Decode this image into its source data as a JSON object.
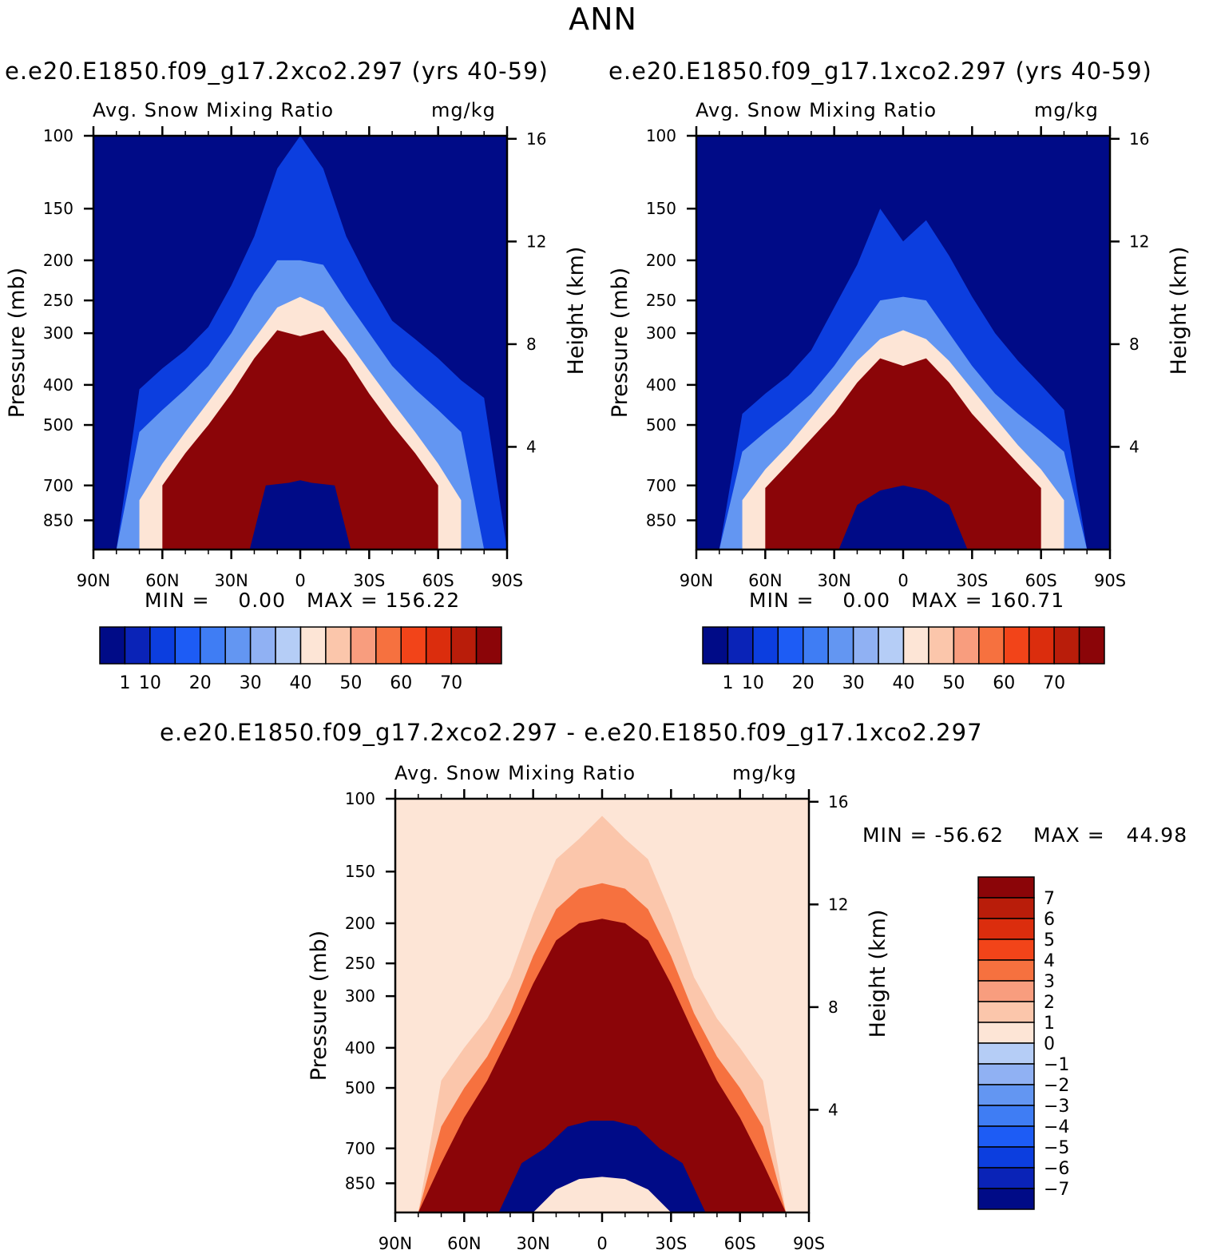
{
  "page_title": "ANN",
  "colors": {
    "abs_levels": [
      "#000b87",
      "#0a23b7",
      "#0c3edf",
      "#1d5cf5",
      "#3f7df4",
      "#6396f2",
      "#90b1f3",
      "#b5cdf6",
      "#dbe9fb",
      "#fde5d6",
      "#fbc6ab",
      "#f89d7e",
      "#f6713f",
      "#f24419",
      "#db2d0d",
      "#b91d0a",
      "#8b0508"
    ],
    "diff_levels": [
      "#000b87",
      "#0a23b7",
      "#0c3edf",
      "#1d5cf5",
      "#3f7df4",
      "#6396f2",
      "#90b1f3",
      "#b5cdf6",
      "#dbe9fb",
      "#fde5d6",
      "#fbc6ab",
      "#f89d7e",
      "#f6713f",
      "#f24419",
      "#db2d0d",
      "#b91d0a",
      "#8b0508"
    ]
  },
  "chart_data": [
    {
      "type": "heatmap",
      "name": "panel-1",
      "title": "e.e20.E1850.f09_g17.2xco2.297 (yrs 40-59)",
      "variable": "Avg. Snow Mixing Ratio",
      "units": "mg/kg",
      "ylabel": "Pressure (mb)",
      "y2label": "Height (km)",
      "x_ticks": [
        "90N",
        "60N",
        "30N",
        "0",
        "30S",
        "60S",
        "90S"
      ],
      "x_values": [
        90,
        60,
        30,
        0,
        -30,
        -60,
        -90
      ],
      "y_ticks": [
        100,
        150,
        200,
        250,
        300,
        400,
        500,
        700,
        850
      ],
      "y_range": [
        100,
        1000
      ],
      "height_ticks": [
        16,
        12,
        8,
        4
      ],
      "min_text": "MIN =    0.00",
      "max_text": "MAX = 156.22",
      "min": 0.0,
      "max": 156.22,
      "colorbar_labels": [
        "1",
        "10",
        "20",
        "30",
        "40",
        "50",
        "60",
        "70"
      ],
      "colorbar_levels": [
        1,
        5,
        10,
        15,
        20,
        25,
        30,
        35,
        40,
        45,
        50,
        55,
        60,
        65,
        70
      ],
      "contours": [
        {
          "value": 1,
          "lat": [
            90,
            80,
            70,
            60,
            50,
            40,
            30,
            20,
            10,
            0,
            -10,
            -20,
            -30,
            -40,
            -50,
            -60,
            -70,
            -80,
            -90
          ],
          "p": [
            1000,
            1000,
            410,
            365,
            330,
            290,
            230,
            175,
            120,
            100,
            120,
            175,
            225,
            280,
            310,
            345,
            390,
            430,
            1000
          ]
        },
        {
          "value": 5,
          "lat": [
            90,
            80,
            70,
            60,
            50,
            40,
            30,
            20,
            10,
            0,
            -10,
            -20,
            -30,
            -40,
            -50,
            -60,
            -70,
            -80,
            -90
          ],
          "p": [
            1000,
            1000,
            520,
            460,
            410,
            360,
            300,
            240,
            200,
            200,
            205,
            250,
            300,
            360,
            410,
            460,
            520,
            1000,
            1000
          ]
        },
        {
          "value": 20,
          "lat": [
            70,
            60,
            50,
            40,
            30,
            20,
            10,
            0,
            -10,
            -20,
            -30,
            -40,
            -50,
            -60,
            -70
          ],
          "p": [
            760,
            620,
            520,
            440,
            370,
            310,
            260,
            245,
            260,
            310,
            370,
            440,
            520,
            620,
            760
          ]
        },
        {
          "value": 60,
          "lat": [
            60,
            50,
            40,
            30,
            20,
            10,
            0,
            -10,
            -20,
            -30,
            -40,
            -50,
            -60
          ],
          "p": [
            700,
            585,
            500,
            420,
            345,
            295,
            305,
            295,
            345,
            420,
            500,
            585,
            700
          ]
        }
      ]
    },
    {
      "type": "heatmap",
      "name": "panel-2",
      "title": "e.e20.E1850.f09_g17.1xco2.297 (yrs 40-59)",
      "variable": "Avg. Snow Mixing Ratio",
      "units": "mg/kg",
      "ylabel": "Pressure (mb)",
      "y2label": "Height (km)",
      "x_ticks": [
        "90N",
        "60N",
        "30N",
        "0",
        "30S",
        "60S",
        "90S"
      ],
      "x_values": [
        90,
        60,
        30,
        0,
        -30,
        -60,
        -90
      ],
      "y_ticks": [
        100,
        150,
        200,
        250,
        300,
        400,
        500,
        700,
        850
      ],
      "y_range": [
        100,
        1000
      ],
      "height_ticks": [
        16,
        12,
        8,
        4
      ],
      "min_text": "MIN =    0.00",
      "max_text": "MAX = 160.71",
      "min": 0.0,
      "max": 160.71,
      "colorbar_labels": [
        "1",
        "10",
        "20",
        "30",
        "40",
        "50",
        "60",
        "70"
      ],
      "colorbar_levels": [
        1,
        5,
        10,
        15,
        20,
        25,
        30,
        35,
        40,
        45,
        50,
        55,
        60,
        65,
        70
      ],
      "contours": [
        {
          "value": 1,
          "lat": [
            90,
            80,
            70,
            60,
            50,
            40,
            30,
            20,
            10,
            0,
            -10,
            -20,
            -30,
            -40,
            -50,
            -60,
            -70,
            -80,
            -90
          ],
          "p": [
            1000,
            1000,
            470,
            420,
            380,
            330,
            260,
            205,
            150,
            180,
            160,
            195,
            245,
            300,
            350,
            400,
            460,
            1000,
            1000
          ]
        },
        {
          "value": 5,
          "lat": [
            90,
            80,
            70,
            60,
            50,
            40,
            30,
            20,
            10,
            0,
            -10,
            -20,
            -30,
            -40,
            -50,
            -60,
            -70,
            -80,
            -90
          ],
          "p": [
            1000,
            1000,
            580,
            520,
            470,
            420,
            360,
            300,
            250,
            245,
            250,
            300,
            360,
            420,
            470,
            520,
            580,
            1000,
            1000
          ]
        },
        {
          "value": 20,
          "lat": [
            70,
            60,
            50,
            40,
            30,
            20,
            10,
            0,
            -10,
            -20,
            -30,
            -40,
            -50,
            -60,
            -70
          ],
          "p": [
            760,
            640,
            560,
            480,
            410,
            350,
            310,
            295,
            310,
            350,
            410,
            480,
            560,
            640,
            760
          ]
        },
        {
          "value": 60,
          "lat": [
            60,
            50,
            40,
            30,
            20,
            10,
            0,
            -10,
            -20,
            -30,
            -40,
            -50,
            -60
          ],
          "p": [
            710,
            620,
            540,
            470,
            395,
            345,
            360,
            345,
            395,
            470,
            540,
            620,
            710
          ]
        }
      ]
    },
    {
      "type": "heatmap",
      "name": "panel-diff",
      "title": "e.e20.E1850.f09_g17.2xco2.297 - e.e20.E1850.f09_g17.1xco2.297",
      "variable": "Avg. Snow Mixing Ratio",
      "units": "mg/kg",
      "ylabel": "Pressure (mb)",
      "y2label": "Height (km)",
      "x_ticks": [
        "90N",
        "60N",
        "30N",
        "0",
        "30S",
        "60S",
        "90S"
      ],
      "x_values": [
        90,
        60,
        30,
        0,
        -30,
        -60,
        -90
      ],
      "y_ticks": [
        100,
        150,
        200,
        250,
        300,
        400,
        500,
        700,
        850
      ],
      "y_range": [
        100,
        1000
      ],
      "height_ticks": [
        16,
        12,
        8,
        4
      ],
      "min_text": "MIN = -56.62",
      "max_text": "MAX =   44.98",
      "min": -56.62,
      "max": 44.98,
      "colorbar_labels": [
        "7",
        "6",
        "5",
        "4",
        "3",
        "2",
        "1",
        "0",
        "-1",
        "-2",
        "-3",
        "-4",
        "-5",
        "-6",
        "-7"
      ],
      "colorbar_levels": [
        -7,
        -6,
        -5,
        -4,
        -3,
        -2,
        -1,
        0,
        1,
        2,
        3,
        4,
        5,
        6,
        7
      ],
      "contours": [
        {
          "value": 1,
          "lat": [
            90,
            80,
            70,
            60,
            50,
            40,
            30,
            20,
            10,
            0,
            -10,
            -20,
            -30,
            -40,
            -50,
            -60,
            -70,
            -80,
            -90
          ],
          "p": [
            1000,
            1000,
            480,
            400,
            340,
            270,
            190,
            140,
            125,
            110,
            125,
            140,
            190,
            270,
            340,
            400,
            480,
            1000,
            1000
          ]
        },
        {
          "value": 3,
          "lat": [
            90,
            80,
            70,
            60,
            50,
            40,
            30,
            20,
            10,
            0,
            -10,
            -20,
            -30,
            -40,
            -50,
            -60,
            -70,
            -80,
            -90
          ],
          "p": [
            1000,
            1000,
            620,
            500,
            420,
            330,
            240,
            185,
            165,
            160,
            165,
            185,
            240,
            330,
            420,
            500,
            620,
            1000,
            1000
          ]
        },
        {
          "value": 7,
          "lat": [
            90,
            80,
            70,
            60,
            50,
            40,
            30,
            20,
            10,
            0,
            -10,
            -20,
            -30,
            -40,
            -50,
            -60,
            -70,
            -80,
            -90
          ],
          "p": [
            1000,
            1000,
            760,
            590,
            480,
            370,
            280,
            220,
            200,
            195,
            200,
            220,
            280,
            370,
            480,
            590,
            760,
            1000,
            1000
          ]
        }
      ],
      "negative_core": {
        "value": -7,
        "lat": [
          45,
          35,
          25,
          15,
          5,
          0,
          -5,
          -15,
          -25,
          -35,
          -45
        ],
        "p": [
          1000,
          760,
          700,
          620,
          600,
          600,
          600,
          620,
          700,
          760,
          1000
        ]
      },
      "near_zero_core": {
        "value": 0,
        "lat": [
          30,
          20,
          10,
          0,
          -10,
          -20,
          -30
        ],
        "p": [
          1000,
          880,
          830,
          820,
          830,
          880,
          1000
        ]
      }
    }
  ]
}
